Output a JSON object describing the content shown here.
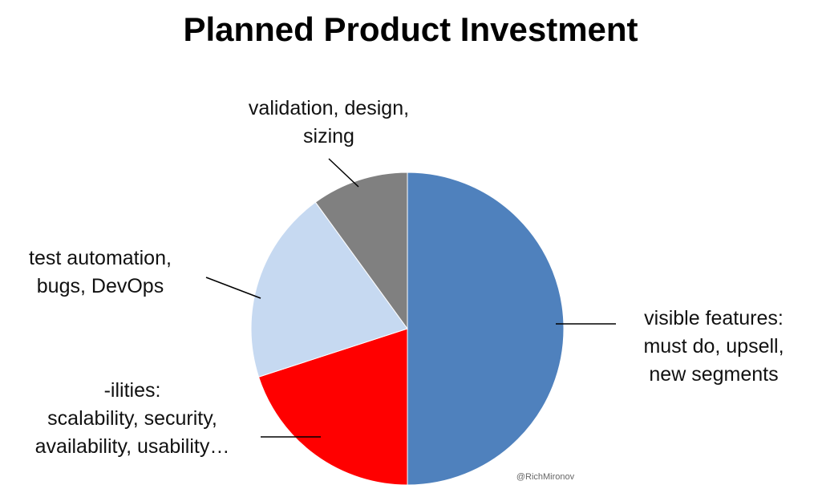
{
  "chart_data": {
    "type": "pie",
    "title": "Planned Product Investment",
    "categories": [
      "visible features:\nmust do, upsell,\nnew segments",
      "-ilities:\nscalability, security,\navailability, usability…",
      "test automation,\nbugs, DevOps",
      "validation, design,\nsizing"
    ],
    "values": [
      50,
      20,
      20,
      10
    ],
    "colors": [
      "#4f81bd",
      "#ff0000",
      "#c6d9f1",
      "#808080"
    ],
    "annotation": "@RichMironov"
  }
}
